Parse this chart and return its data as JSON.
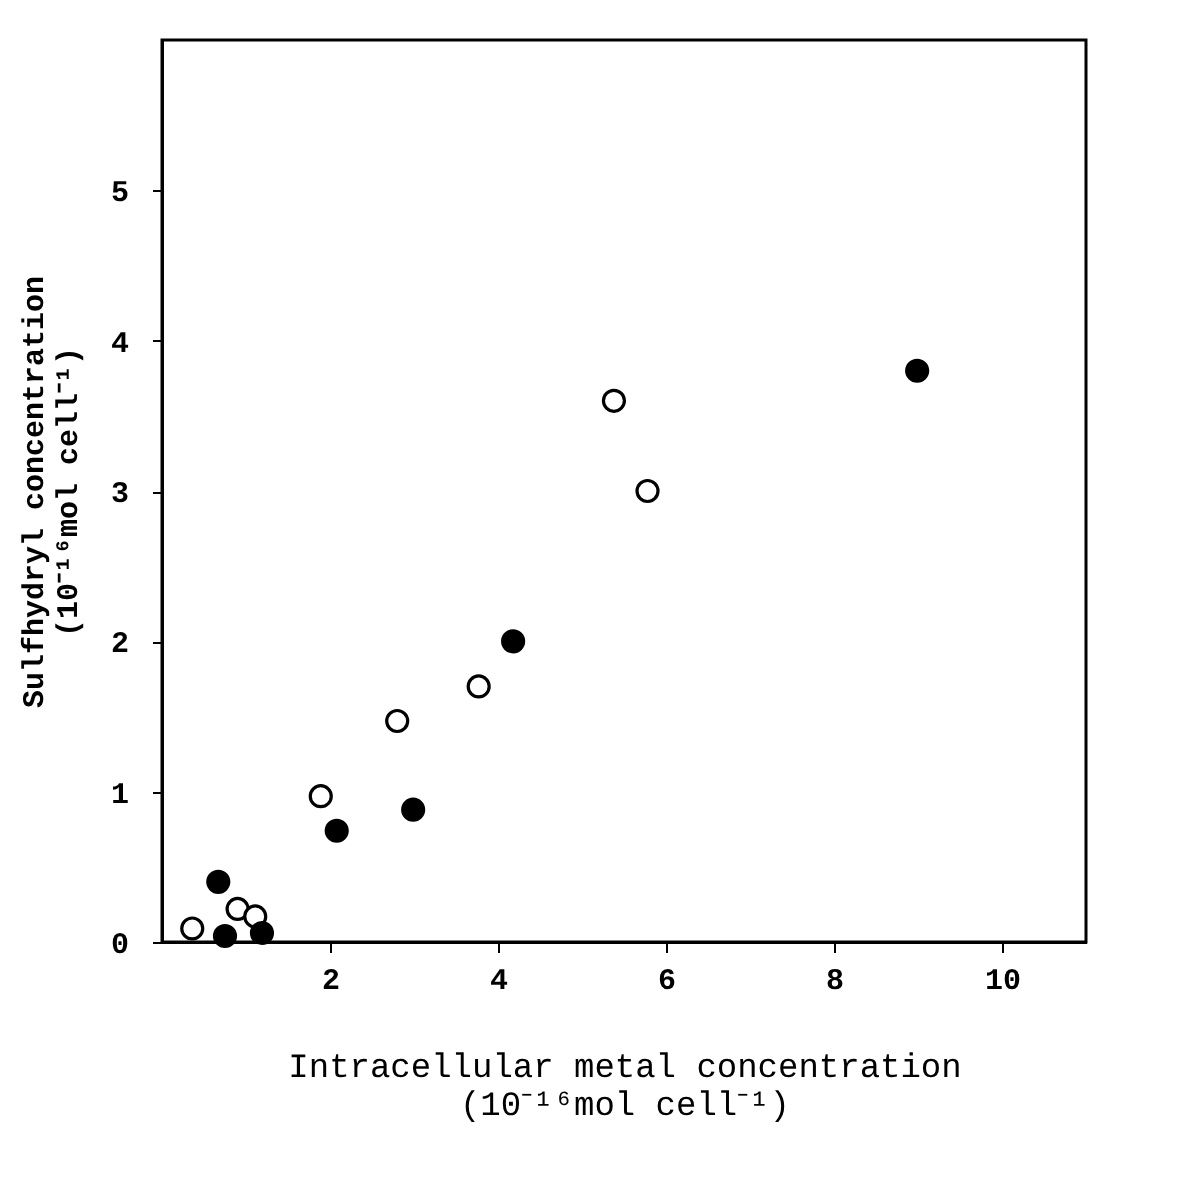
{
  "chart_data": {
    "type": "scatter",
    "xlabel": "Intracellular metal concentration\n(10⁻¹⁶mol cell⁻¹)",
    "ylabel": "Sulfhydryl concentration\n(10⁻¹⁶mol cell⁻¹)",
    "xlim": [
      0,
      11
    ],
    "xticks": [
      2,
      4,
      6,
      8,
      10
    ],
    "ylim": [
      0,
      6
    ],
    "yticks": [
      0,
      1,
      2,
      3,
      4,
      5
    ],
    "grid": false,
    "marker": "circle",
    "series": [
      {
        "color": "#ffffff",
        "x": [
          0.36,
          0.9,
          1.11,
          1.89,
          2.8,
          3.77,
          5.38,
          5.78
        ],
        "values": [
          0.09,
          0.22,
          0.17,
          0.97,
          1.47,
          1.7,
          3.6,
          3.0
        ]
      },
      {
        "color": "#000000",
        "x": [
          0.75,
          0.67,
          1.19,
          2.08,
          2.99,
          4.18,
          8.99
        ],
        "values": [
          0.04,
          0.4,
          0.06,
          0.74,
          0.88,
          2.0,
          3.8
        ]
      }
    ]
  }
}
